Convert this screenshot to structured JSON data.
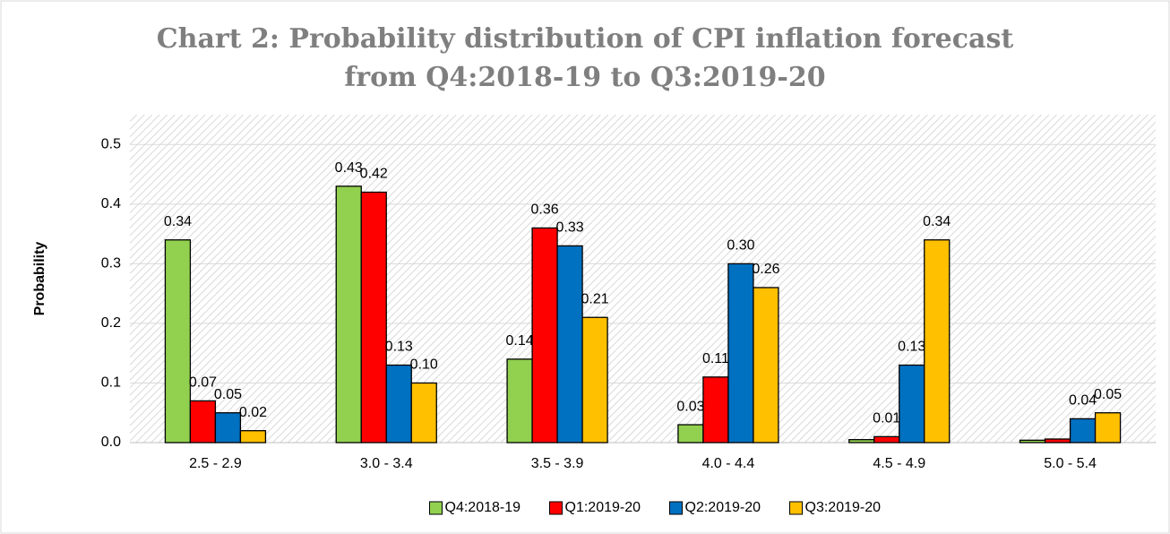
{
  "chart_data": {
    "type": "bar",
    "title": [
      "Chart 2: Probability distribution of  CPI inflation forecast",
      "from Q4:2018-19 to Q3:2019-20"
    ],
    "y_label": "Probability",
    "categories": [
      "2.5 - 2.9",
      "3.0 - 3.4",
      "3.5 - 3.9",
      "4.0 - 4.4",
      "4.5 - 4.9",
      "5.0 - 5.4"
    ],
    "series": [
      {
        "name": "Q4:2018-19",
        "color": "#92d050",
        "values": [
          0.34,
          0.43,
          0.14,
          0.03,
          0.005,
          0.004
        ],
        "value_labels": [
          "0.34",
          "0.43",
          "0.14",
          "0.03",
          null,
          null
        ]
      },
      {
        "name": "Q1:2019-20",
        "color": "#ff0000",
        "values": [
          0.07,
          0.42,
          0.36,
          0.11,
          0.01,
          0.006
        ],
        "value_labels": [
          "0.07",
          "0.42",
          "0.36",
          "0.11",
          "0.01",
          null
        ]
      },
      {
        "name": "Q2:2019-20",
        "color": "#0070c0",
        "values": [
          0.05,
          0.13,
          0.33,
          0.3,
          0.13,
          0.04
        ],
        "value_labels": [
          "0.05",
          "0.13",
          "0.33",
          "0.30",
          "0.13",
          "0.04"
        ]
      },
      {
        "name": "Q3:2019-20",
        "color": "#ffc000",
        "values": [
          0.02,
          0.1,
          0.21,
          0.26,
          0.34,
          0.05
        ],
        "value_labels": [
          "0.02",
          "0.10",
          "0.21",
          "0.26",
          "0.34",
          "0.05"
        ]
      }
    ],
    "ylim": [
      0,
      0.55
    ],
    "yticks": [
      {
        "value": 0,
        "label": "0.0"
      },
      0.1,
      0.2,
      0.3,
      0.4,
      0.5
    ],
    "grid": true,
    "legend": "bottom"
  }
}
